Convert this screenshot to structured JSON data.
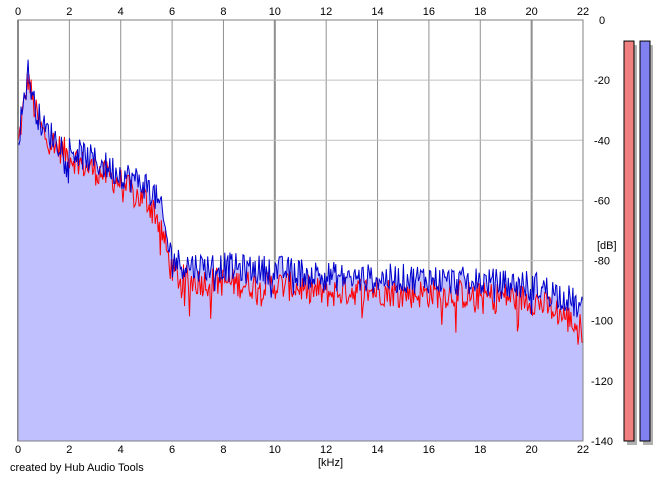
{
  "chart_data": {
    "type": "area",
    "xlabel": "[kHz]",
    "ylabel": "[dB]",
    "xlim": [
      0,
      22
    ],
    "ylim": [
      -140,
      0
    ],
    "x_ticks": [
      "0",
      "2",
      "4",
      "6",
      "8",
      "10",
      "12",
      "14",
      "16",
      "18",
      "20",
      "22"
    ],
    "y_ticks": [
      "0",
      "-20",
      "-40",
      "-60",
      "-80",
      "-100",
      "-120",
      "-140"
    ],
    "grid": true,
    "x": [
      0,
      0.2,
      0.4,
      0.6,
      0.8,
      1.0,
      1.5,
      2.0,
      2.5,
      3.0,
      3.5,
      4.0,
      4.5,
      5.0,
      5.3,
      5.6,
      5.8,
      6.0,
      6.3,
      7.0,
      8.0,
      9.0,
      10.0,
      11.0,
      12.0,
      13.0,
      14.0,
      15.0,
      16.0,
      17.0,
      18.0,
      19.0,
      20.0,
      21.0,
      21.5,
      22.0
    ],
    "series": [
      {
        "color": "#ff0000",
        "values": [
          -42,
          -30,
          -19,
          -28,
          -34,
          -38,
          -42,
          -45,
          -48,
          -50,
          -52,
          -54,
          -58,
          -60,
          -63,
          -70,
          -77,
          -84,
          -86,
          -87,
          -87,
          -88,
          -88,
          -89,
          -91,
          -90,
          -90,
          -91,
          -91,
          -91,
          -92,
          -92,
          -93,
          -97,
          -100,
          -103
        ]
      },
      {
        "color": "#0000cc",
        "values": [
          -40,
          -28,
          -17,
          -27,
          -32,
          -36,
          -40,
          -43,
          -45,
          -47,
          -49,
          -51,
          -53,
          -55,
          -58,
          -64,
          -73,
          -79,
          -81,
          -82,
          -82,
          -83,
          -83,
          -84,
          -85,
          -86,
          -86,
          -86,
          -86,
          -87,
          -87,
          -88,
          -88,
          -91,
          -93,
          -97
        ]
      }
    ],
    "fill_color": "#c0c0ff",
    "level_meters": [
      {
        "color": "#f08080",
        "level_db": -7
      },
      {
        "color": "#8080f0",
        "level_db": -7
      }
    ]
  },
  "credit": "created by Hub Audio Tools"
}
